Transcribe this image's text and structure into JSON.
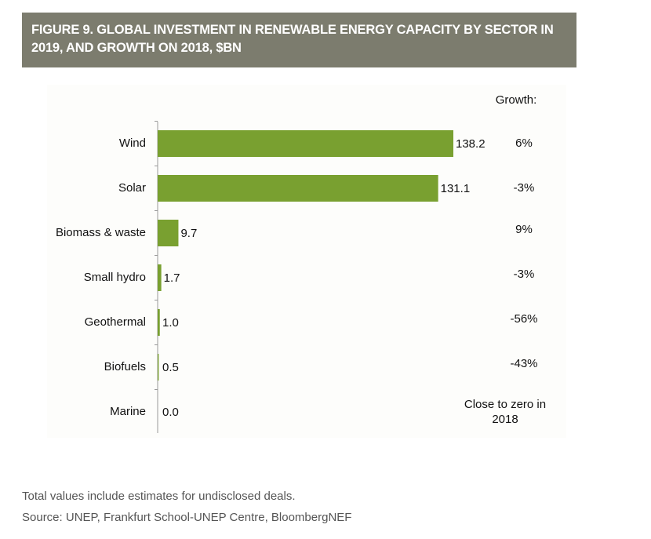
{
  "chart_data": {
    "type": "bar",
    "orientation": "horizontal",
    "title": "FIGURE 9. GLOBAL INVESTMENT IN RENEWABLE ENERGY CAPACITY BY SECTOR IN 2019, AND GROWTH ON 2018, $BN",
    "categories": [
      "Wind",
      "Solar",
      "Biomass & waste",
      "Small hydro",
      "Geothermal",
      "Biofuels",
      "Marine"
    ],
    "values": [
      138.2,
      131.1,
      9.7,
      1.7,
      1.0,
      0.5,
      0.0
    ],
    "value_labels": [
      "138.2",
      "131.1",
      "9.7",
      "1.7",
      "1.0",
      "0.5",
      "0.0"
    ],
    "color": "#79a030",
    "growth_title": "Growth:",
    "growth_labels": [
      "6%",
      "-3%",
      "9%",
      "-3%",
      "-56%",
      "-43%",
      "Close to zero in 2018"
    ],
    "notes": [
      "Total values include estimates for undisclosed deals.",
      "Source: UNEP, Frankfurt School-UNEP Centre, BloombergNEF"
    ]
  }
}
